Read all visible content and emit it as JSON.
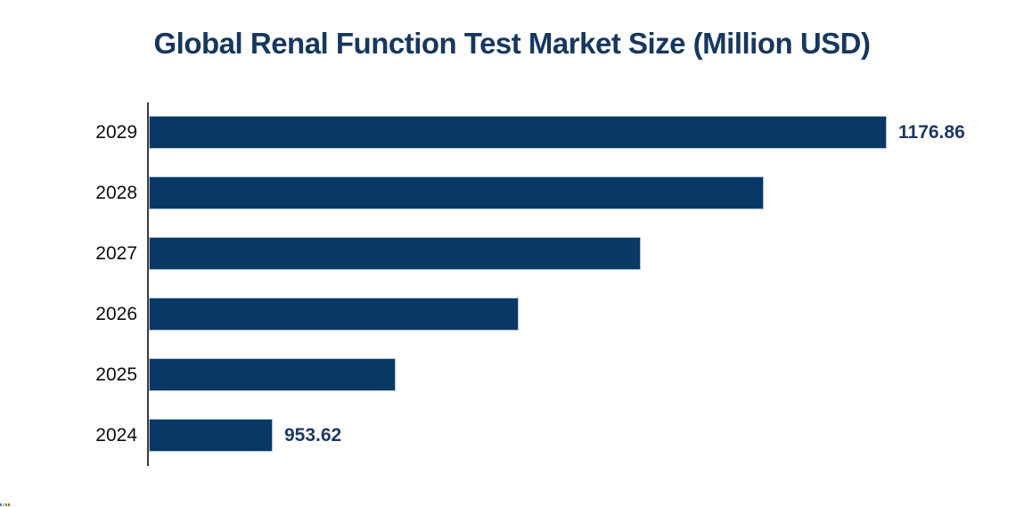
{
  "title": "Global Renal Function Test Market Size (Million USD)",
  "colors": {
    "title_text": "#17375e",
    "bar_fill": "#0a3864",
    "bar_border": "#a8c4d8",
    "value_label_text": "#1f3864",
    "year_label_text": "#0d0d0d",
    "axis_line": "#3c3c3c"
  },
  "chart_data": {
    "type": "bar",
    "orientation": "horizontal",
    "title": "Global Renal Function Test Market Size (Million USD)",
    "xlabel": "",
    "ylabel": "",
    "categories": [
      "2029",
      "2028",
      "2027",
      "2026",
      "2025",
      "2024"
    ],
    "values": [
      1176.86,
      1132.21,
      1087.57,
      1042.92,
      998.27,
      953.62
    ],
    "value_labels_shown": [
      "1176.86",
      "",
      "",
      "",
      "",
      "953.62"
    ],
    "xlim": [
      908.6,
      1176.86
    ],
    "grid": false,
    "legend": false,
    "notes": "Only 2029 and 2024 bars carry data labels; intermediate values estimated from bar lengths (equal yearly increments)."
  },
  "corner_mark_colors": [
    "#4285f4",
    "#fbbc05",
    "#34a853",
    "#ea4335"
  ]
}
